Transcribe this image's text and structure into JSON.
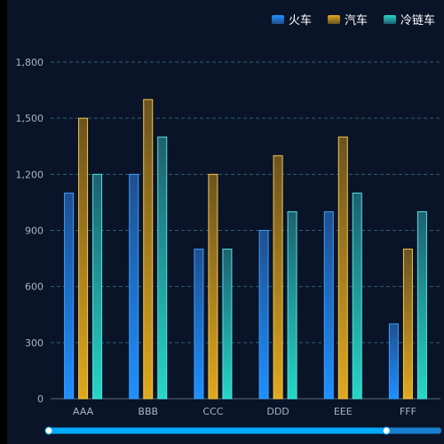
{
  "chart_data": {
    "type": "bar",
    "categories": [
      "AAA",
      "BBB",
      "CCC",
      "DDD",
      "EEE",
      "FFF"
    ],
    "series": [
      {
        "name": "火车",
        "values": [
          1100,
          1200,
          800,
          900,
          1000,
          400
        ]
      },
      {
        "name": "汽车",
        "values": [
          1500,
          1600,
          1200,
          1300,
          1400,
          800
        ]
      },
      {
        "name": "冷链车",
        "values": [
          1200,
          1400,
          800,
          1000,
          1100,
          1000
        ]
      }
    ],
    "yticks": [
      "0",
      "300",
      "600",
      "900",
      "1,200",
      "1,500",
      "1,800"
    ],
    "ylim": [
      0,
      1800
    ],
    "grid": true,
    "legend_position": "top-right",
    "title": "",
    "xlabel": "",
    "ylabel": "",
    "colors": {
      "background": "#0a1428",
      "grid": "#2f5f6f",
      "axis_text": "#a8b4c4",
      "series_top": [
        "#1f4f8f",
        "#6b5320",
        "#1f5f6f"
      ],
      "series_bottom": [
        "#1e90ff",
        "#e0a81e",
        "#26d6c6"
      ],
      "series_border": [
        "#3aa0ff",
        "#f2c84a",
        "#4fe6dc"
      ],
      "datazoom_track": "#1a7fd0",
      "datazoom_fill": "#00aaff"
    },
    "datazoom": {
      "start": 0,
      "end": 0.86
    }
  }
}
